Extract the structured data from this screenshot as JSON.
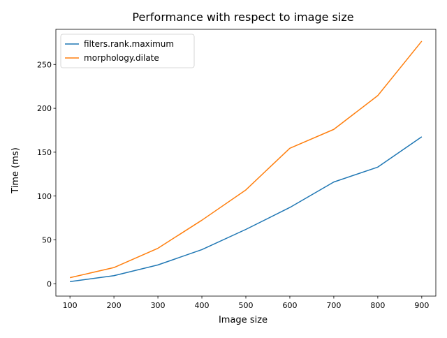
{
  "chart_data": {
    "type": "line",
    "title": "Performance with respect to image size",
    "xlabel": "Image size",
    "ylabel": "Time (ms)",
    "x": [
      100,
      200,
      300,
      400,
      500,
      600,
      700,
      800,
      900
    ],
    "xlim": [
      68,
      932
    ],
    "ylim": [
      -14,
      290
    ],
    "xticks": [
      100,
      200,
      300,
      400,
      500,
      600,
      700,
      800,
      900
    ],
    "yticks": [
      0,
      50,
      100,
      150,
      200,
      250
    ],
    "grid": false,
    "legend_position": "top-left",
    "series": [
      {
        "name": "filters.rank.maximum",
        "color": "#1f77b4",
        "values": [
          2.5,
          9.3,
          21.5,
          39.0,
          62.0,
          87.0,
          116.0,
          133.0,
          167.5
        ]
      },
      {
        "name": "morphology.dilate",
        "color": "#ff7f0e",
        "values": [
          7.0,
          18.5,
          40.5,
          72.5,
          107.0,
          154.5,
          176.0,
          214.5,
          276.5
        ]
      }
    ]
  }
}
